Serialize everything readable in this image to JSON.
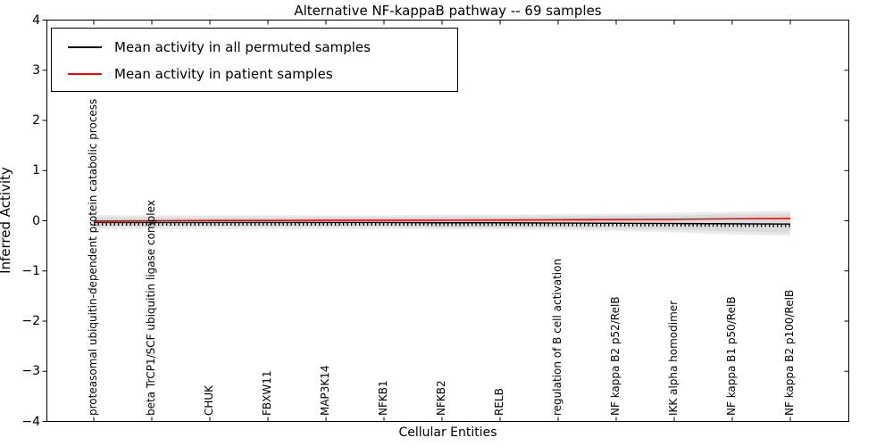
{
  "title": "Alternative NF-kappaB pathway -- 69 samples",
  "axes": {
    "xlabel": "Cellular Entities",
    "ylabel": "Inferred Activity"
  },
  "chart_data": {
    "type": "line",
    "title": "Alternative NF-kappaB pathway -- 69 samples",
    "xlabel": "Cellular Entities",
    "ylabel": "Inferred Activity",
    "ylim": [
      -4,
      4
    ],
    "ytick_values": [
      4,
      3,
      2,
      1,
      0,
      -1,
      -2,
      -3,
      -4
    ],
    "ytick_labels": [
      "4",
      "3",
      "2",
      "1",
      "0",
      "−1",
      "−2",
      "−3",
      "−4"
    ],
    "grid": false,
    "legend_position": "upper left",
    "categories": [
      "proteasomal ubiquitin-dependent protein catabolic process",
      "beta TrCP1/SCF ubiquitin ligase complex",
      "CHUK",
      "FBXW11",
      "MAP3K14",
      "NFKB1",
      "NFKB2",
      "RELB",
      "regulation of B cell activation",
      "NF kappa B2 p52/RelB",
      "IKK alpha homodimer",
      "NF kappa B1 p50/RelB",
      "NF kappa B2 p100/RelB"
    ],
    "series": [
      {
        "name": "Mean activity in all permuted samples",
        "color": "#000000",
        "style": "solid-with-tick-markers",
        "values": [
          -0.035,
          -0.035,
          -0.035,
          -0.035,
          -0.035,
          -0.035,
          -0.04,
          -0.04,
          -0.045,
          -0.05,
          -0.055,
          -0.06,
          -0.065
        ]
      },
      {
        "name": "Mean activity in patient samples",
        "color": "#ff0000",
        "style": "solid",
        "values": [
          -0.005,
          0.0,
          0.005,
          0.005,
          0.01,
          0.01,
          0.01,
          0.015,
          0.02,
          0.025,
          0.03,
          0.04,
          0.045
        ]
      }
    ],
    "bands": [
      {
        "name": "permuted-spread-outer",
        "color": "#eaeaea",
        "upper": [
          0.11,
          0.11,
          0.11,
          0.11,
          0.11,
          0.11,
          0.12,
          0.12,
          0.13,
          0.14,
          0.16,
          0.18,
          0.2
        ],
        "lower": [
          -0.16,
          -0.16,
          -0.16,
          -0.16,
          -0.16,
          -0.16,
          -0.17,
          -0.17,
          -0.18,
          -0.2,
          -0.23,
          -0.27,
          -0.3
        ]
      },
      {
        "name": "permuted-spread-inner",
        "color": "#dbdbdb",
        "upper": [
          0.07,
          0.07,
          0.07,
          0.07,
          0.07,
          0.07,
          0.08,
          0.08,
          0.09,
          0.1,
          0.11,
          0.13,
          0.14
        ],
        "lower": [
          -0.12,
          -0.12,
          -0.12,
          -0.12,
          -0.12,
          -0.12,
          -0.13,
          -0.13,
          -0.14,
          -0.16,
          -0.18,
          -0.21,
          -0.24
        ]
      }
    ]
  }
}
